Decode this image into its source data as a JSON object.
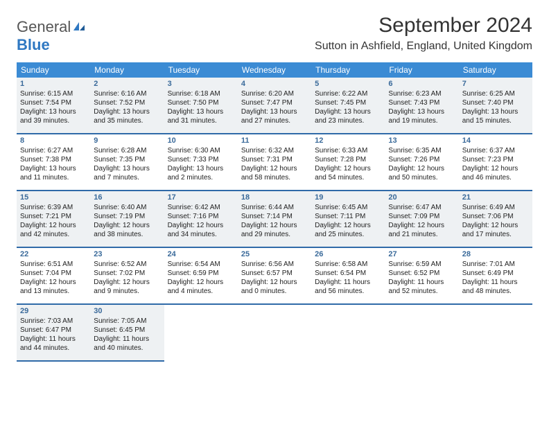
{
  "logo": {
    "text1": "General",
    "text2": "Blue"
  },
  "title": "September 2024",
  "location": "Sutton in Ashfield, England, United Kingdom",
  "headers": [
    "Sunday",
    "Monday",
    "Tuesday",
    "Wednesday",
    "Thursday",
    "Friday",
    "Saturday"
  ],
  "colors": {
    "header_bg": "#3b8bd4",
    "header_text": "#ffffff",
    "border": "#2f6aa8",
    "shaded": "#eef1f3",
    "daynum": "#3a6a9a",
    "logo_blue": "#2f78c2"
  },
  "days": [
    {
      "n": "1",
      "shaded": true,
      "sr": "Sunrise: 6:15 AM",
      "ss": "Sunset: 7:54 PM",
      "d1": "Daylight: 13 hours",
      "d2": "and 39 minutes."
    },
    {
      "n": "2",
      "shaded": true,
      "sr": "Sunrise: 6:16 AM",
      "ss": "Sunset: 7:52 PM",
      "d1": "Daylight: 13 hours",
      "d2": "and 35 minutes."
    },
    {
      "n": "3",
      "shaded": true,
      "sr": "Sunrise: 6:18 AM",
      "ss": "Sunset: 7:50 PM",
      "d1": "Daylight: 13 hours",
      "d2": "and 31 minutes."
    },
    {
      "n": "4",
      "shaded": true,
      "sr": "Sunrise: 6:20 AM",
      "ss": "Sunset: 7:47 PM",
      "d1": "Daylight: 13 hours",
      "d2": "and 27 minutes."
    },
    {
      "n": "5",
      "shaded": true,
      "sr": "Sunrise: 6:22 AM",
      "ss": "Sunset: 7:45 PM",
      "d1": "Daylight: 13 hours",
      "d2": "and 23 minutes."
    },
    {
      "n": "6",
      "shaded": true,
      "sr": "Sunrise: 6:23 AM",
      "ss": "Sunset: 7:43 PM",
      "d1": "Daylight: 13 hours",
      "d2": "and 19 minutes."
    },
    {
      "n": "7",
      "shaded": true,
      "sr": "Sunrise: 6:25 AM",
      "ss": "Sunset: 7:40 PM",
      "d1": "Daylight: 13 hours",
      "d2": "and 15 minutes."
    },
    {
      "n": "8",
      "shaded": false,
      "sr": "Sunrise: 6:27 AM",
      "ss": "Sunset: 7:38 PM",
      "d1": "Daylight: 13 hours",
      "d2": "and 11 minutes."
    },
    {
      "n": "9",
      "shaded": false,
      "sr": "Sunrise: 6:28 AM",
      "ss": "Sunset: 7:35 PM",
      "d1": "Daylight: 13 hours",
      "d2": "and 7 minutes."
    },
    {
      "n": "10",
      "shaded": false,
      "sr": "Sunrise: 6:30 AM",
      "ss": "Sunset: 7:33 PM",
      "d1": "Daylight: 13 hours",
      "d2": "and 2 minutes."
    },
    {
      "n": "11",
      "shaded": false,
      "sr": "Sunrise: 6:32 AM",
      "ss": "Sunset: 7:31 PM",
      "d1": "Daylight: 12 hours",
      "d2": "and 58 minutes."
    },
    {
      "n": "12",
      "shaded": false,
      "sr": "Sunrise: 6:33 AM",
      "ss": "Sunset: 7:28 PM",
      "d1": "Daylight: 12 hours",
      "d2": "and 54 minutes."
    },
    {
      "n": "13",
      "shaded": false,
      "sr": "Sunrise: 6:35 AM",
      "ss": "Sunset: 7:26 PM",
      "d1": "Daylight: 12 hours",
      "d2": "and 50 minutes."
    },
    {
      "n": "14",
      "shaded": false,
      "sr": "Sunrise: 6:37 AM",
      "ss": "Sunset: 7:23 PM",
      "d1": "Daylight: 12 hours",
      "d2": "and 46 minutes."
    },
    {
      "n": "15",
      "shaded": true,
      "sr": "Sunrise: 6:39 AM",
      "ss": "Sunset: 7:21 PM",
      "d1": "Daylight: 12 hours",
      "d2": "and 42 minutes."
    },
    {
      "n": "16",
      "shaded": true,
      "sr": "Sunrise: 6:40 AM",
      "ss": "Sunset: 7:19 PM",
      "d1": "Daylight: 12 hours",
      "d2": "and 38 minutes."
    },
    {
      "n": "17",
      "shaded": true,
      "sr": "Sunrise: 6:42 AM",
      "ss": "Sunset: 7:16 PM",
      "d1": "Daylight: 12 hours",
      "d2": "and 34 minutes."
    },
    {
      "n": "18",
      "shaded": true,
      "sr": "Sunrise: 6:44 AM",
      "ss": "Sunset: 7:14 PM",
      "d1": "Daylight: 12 hours",
      "d2": "and 29 minutes."
    },
    {
      "n": "19",
      "shaded": true,
      "sr": "Sunrise: 6:45 AM",
      "ss": "Sunset: 7:11 PM",
      "d1": "Daylight: 12 hours",
      "d2": "and 25 minutes."
    },
    {
      "n": "20",
      "shaded": true,
      "sr": "Sunrise: 6:47 AM",
      "ss": "Sunset: 7:09 PM",
      "d1": "Daylight: 12 hours",
      "d2": "and 21 minutes."
    },
    {
      "n": "21",
      "shaded": true,
      "sr": "Sunrise: 6:49 AM",
      "ss": "Sunset: 7:06 PM",
      "d1": "Daylight: 12 hours",
      "d2": "and 17 minutes."
    },
    {
      "n": "22",
      "shaded": false,
      "sr": "Sunrise: 6:51 AM",
      "ss": "Sunset: 7:04 PM",
      "d1": "Daylight: 12 hours",
      "d2": "and 13 minutes."
    },
    {
      "n": "23",
      "shaded": false,
      "sr": "Sunrise: 6:52 AM",
      "ss": "Sunset: 7:02 PM",
      "d1": "Daylight: 12 hours",
      "d2": "and 9 minutes."
    },
    {
      "n": "24",
      "shaded": false,
      "sr": "Sunrise: 6:54 AM",
      "ss": "Sunset: 6:59 PM",
      "d1": "Daylight: 12 hours",
      "d2": "and 4 minutes."
    },
    {
      "n": "25",
      "shaded": false,
      "sr": "Sunrise: 6:56 AM",
      "ss": "Sunset: 6:57 PM",
      "d1": "Daylight: 12 hours",
      "d2": "and 0 minutes."
    },
    {
      "n": "26",
      "shaded": false,
      "sr": "Sunrise: 6:58 AM",
      "ss": "Sunset: 6:54 PM",
      "d1": "Daylight: 11 hours",
      "d2": "and 56 minutes."
    },
    {
      "n": "27",
      "shaded": false,
      "sr": "Sunrise: 6:59 AM",
      "ss": "Sunset: 6:52 PM",
      "d1": "Daylight: 11 hours",
      "d2": "and 52 minutes."
    },
    {
      "n": "28",
      "shaded": false,
      "sr": "Sunrise: 7:01 AM",
      "ss": "Sunset: 6:49 PM",
      "d1": "Daylight: 11 hours",
      "d2": "and 48 minutes."
    },
    {
      "n": "29",
      "shaded": true,
      "sr": "Sunrise: 7:03 AM",
      "ss": "Sunset: 6:47 PM",
      "d1": "Daylight: 11 hours",
      "d2": "and 44 minutes."
    },
    {
      "n": "30",
      "shaded": true,
      "sr": "Sunrise: 7:05 AM",
      "ss": "Sunset: 6:45 PM",
      "d1": "Daylight: 11 hours",
      "d2": "and 40 minutes."
    }
  ]
}
